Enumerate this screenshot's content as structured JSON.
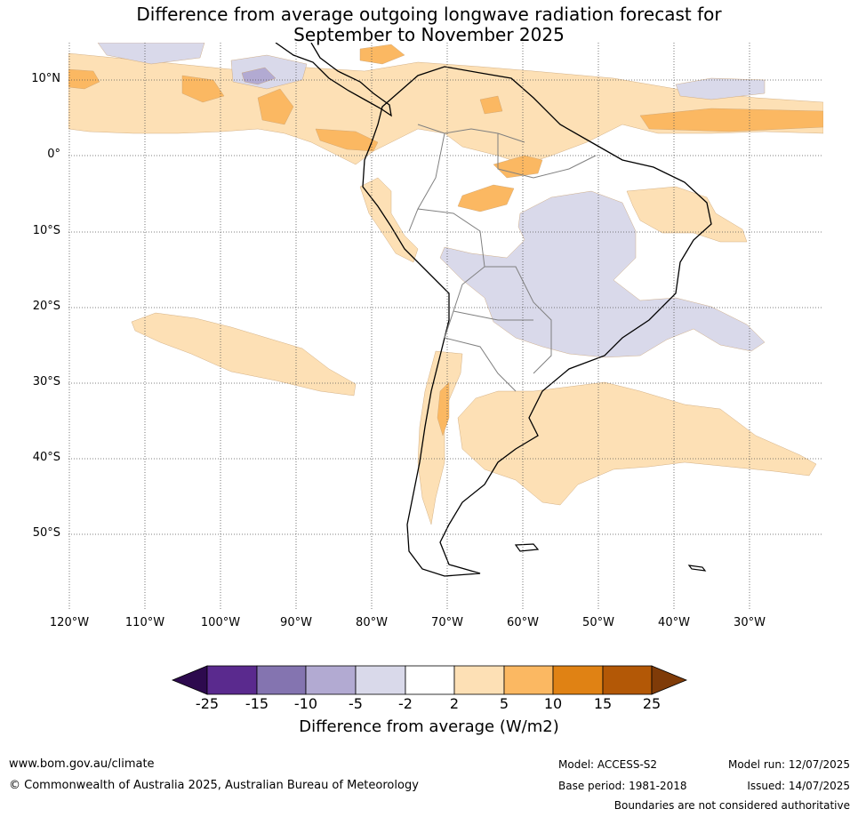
{
  "title": {
    "line1": "Difference from average outgoing longwave radiation forecast for",
    "line2": "September to November 2025"
  },
  "map": {
    "lat_labels": [
      "10°N",
      "0°",
      "10°S",
      "20°S",
      "30°S",
      "40°S",
      "50°S"
    ],
    "lon_labels": [
      "120°W",
      "110°W",
      "100°W",
      "90°W",
      "80°W",
      "70°W",
      "60°W",
      "50°W",
      "40°W",
      "30°W"
    ],
    "colors": {
      "below_neg25": "#2d0a4e",
      "neg25_neg15": "#5a2a8e",
      "neg15_neg10": "#8474b0",
      "neg10_neg5": "#b2aad2",
      "neg5_neg2": "#d9d9ea",
      "neg2_2": "#ffffff",
      "p2_5": "#fde0b5",
      "p5_10": "#fbb862",
      "p10_15": "#e08214",
      "p15_25": "#b35806",
      "above_25": "#7f3b08",
      "land_border": "#000000",
      "country_border": "#808080",
      "grid": "#555555"
    }
  },
  "colorbar": {
    "ticks": [
      "-25",
      "-15",
      "-10",
      "-5",
      "-2",
      "2",
      "5",
      "10",
      "15",
      "25"
    ],
    "label": "Difference from average (W/m2)"
  },
  "footer": {
    "website": "www.bom.gov.au/climate",
    "copyright": "© Commonwealth of Australia 2025, Australian Bureau of Meteorology",
    "model": "Model: ACCESS-S2",
    "base_period": "Base period: 1981-2018",
    "model_run": "Model run: 12/07/2025",
    "issued": "Issued: 14/07/2025",
    "disclaimer": "Boundaries are not considered authoritative"
  }
}
